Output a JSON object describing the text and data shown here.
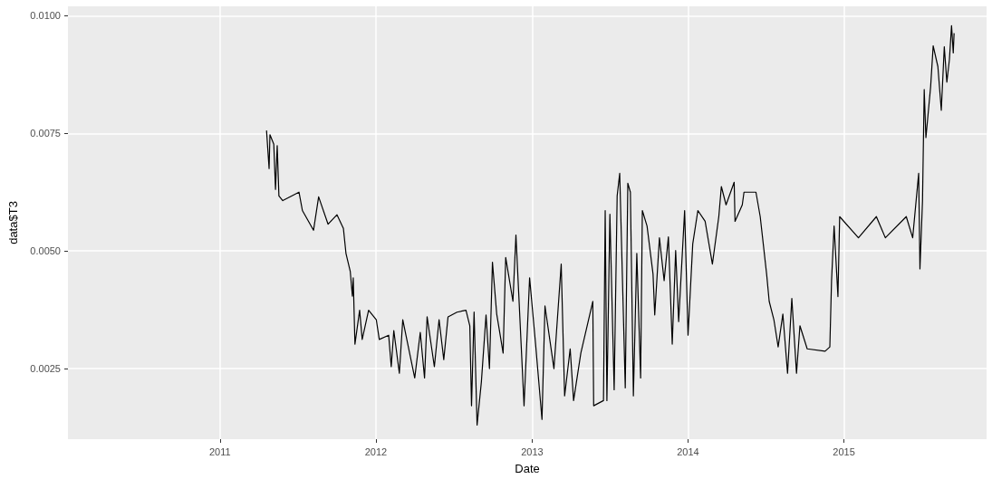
{
  "chart_data": {
    "type": "line",
    "xlabel": "Date",
    "ylabel": "data$T3",
    "xlim": [
      "2010-01-10",
      "2015-12-01"
    ],
    "xticks": [
      "2011",
      "2012",
      "2013",
      "2014",
      "2015"
    ],
    "ylim": [
      0.001,
      0.0102
    ],
    "yticks": [
      {
        "value": 0.0025,
        "label": "0.0025"
      },
      {
        "value": 0.005,
        "label": "0.0050"
      },
      {
        "value": 0.0075,
        "label": "0.0075"
      },
      {
        "value": 0.01,
        "label": "0.0100"
      }
    ],
    "grid": true,
    "marker": "none",
    "series": [
      {
        "color": "#000000",
        "x": [
          "2011-04-20",
          "2011-04-26",
          "2011-04-28",
          "2011-05-07",
          "2011-05-11",
          "2011-05-15",
          "2011-05-19",
          "2011-05-28",
          "2011-07-05",
          "2011-07-13",
          "2011-08-08",
          "2011-08-20",
          "2011-09-11",
          "2011-10-02",
          "2011-10-17",
          "2011-10-23",
          "2011-11-02",
          "2011-11-07",
          "2011-11-09",
          "2011-11-13",
          "2011-11-24",
          "2011-11-30",
          "2011-12-15",
          "2012-01-02",
          "2012-01-09",
          "2012-01-31",
          "2012-02-06",
          "2012-02-12",
          "2012-02-25",
          "2012-03-04",
          "2012-04-01",
          "2012-04-14",
          "2012-04-24",
          "2012-04-30",
          "2012-05-17",
          "2012-05-28",
          "2012-06-08",
          "2012-06-18",
          "2012-07-09",
          "2012-07-30",
          "2012-08-08",
          "2012-08-12",
          "2012-08-18",
          "2012-08-25",
          "2012-09-04",
          "2012-09-15",
          "2012-09-23",
          "2012-09-30",
          "2012-10-10",
          "2012-10-25",
          "2012-10-31",
          "2012-11-17",
          "2012-11-24",
          "2012-12-13",
          "2012-12-26",
          "2013-01-09",
          "2013-01-24",
          "2013-01-31",
          "2013-02-21",
          "2013-03-10",
          "2013-03-18",
          "2013-03-31",
          "2013-04-08",
          "2013-04-25",
          "2013-05-23",
          "2013-05-25",
          "2013-06-17",
          "2013-06-21",
          "2013-06-25",
          "2013-07-02",
          "2013-07-12",
          "2013-07-19",
          "2013-07-25",
          "2013-08-07",
          "2013-08-13",
          "2013-08-19",
          "2013-08-26",
          "2013-09-03",
          "2013-09-12",
          "2013-09-16",
          "2013-09-27",
          "2013-10-11",
          "2013-10-15",
          "2013-10-26",
          "2013-11-06",
          "2013-11-16",
          "2013-11-25",
          "2013-12-03",
          "2013-12-10",
          "2013-12-24",
          "2014-01-01",
          "2014-01-12",
          "2014-01-24",
          "2014-02-10",
          "2014-02-27",
          "2014-03-14",
          "2014-03-20",
          "2014-03-31",
          "2014-04-19",
          "2014-04-21",
          "2014-05-08",
          "2014-05-12",
          "2014-06-09",
          "2014-06-19",
          "2014-07-04",
          "2014-07-10",
          "2014-07-21",
          "2014-07-31",
          "2014-08-11",
          "2014-08-22",
          "2014-09-01",
          "2014-09-12",
          "2014-09-20",
          "2014-10-07",
          "2014-11-18",
          "2014-11-29",
          "2014-12-03",
          "2014-12-09",
          "2014-12-18",
          "2014-12-22",
          "2015-02-04",
          "2015-03-18",
          "2015-04-08",
          "2015-05-27",
          "2015-06-11",
          "2015-06-25",
          "2015-06-28",
          "2015-07-04",
          "2015-07-08",
          "2015-07-12",
          "2015-07-23",
          "2015-07-29",
          "2015-08-09",
          "2015-08-17",
          "2015-08-24",
          "2015-08-30",
          "2015-09-05",
          "2015-09-10",
          "2015-09-14",
          "2015-09-16"
        ],
        "values": [
          0.00756,
          0.00675,
          0.00747,
          0.00727,
          0.00631,
          0.00724,
          0.00617,
          0.00607,
          0.00625,
          0.00586,
          0.00544,
          0.00615,
          0.00557,
          0.00577,
          0.00548,
          0.00495,
          0.00457,
          0.00404,
          0.00443,
          0.00302,
          0.00374,
          0.00312,
          0.00374,
          0.00354,
          0.00312,
          0.00321,
          0.00254,
          0.00331,
          0.0024,
          0.00354,
          0.0023,
          0.00327,
          0.0023,
          0.0036,
          0.00254,
          0.00354,
          0.00269,
          0.0036,
          0.0037,
          0.00374,
          0.00341,
          0.00171,
          0.0037,
          0.0013,
          0.00221,
          0.00364,
          0.0025,
          0.00476,
          0.00366,
          0.00283,
          0.00486,
          0.00393,
          0.00534,
          0.00171,
          0.00443,
          0.00302,
          0.00142,
          0.00383,
          0.0025,
          0.00472,
          0.00192,
          0.00292,
          0.00182,
          0.00283,
          0.00393,
          0.00171,
          0.00182,
          0.00586,
          0.00182,
          0.00578,
          0.00205,
          0.00617,
          0.00665,
          0.00209,
          0.00644,
          0.00625,
          0.00192,
          0.00495,
          0.0023,
          0.00586,
          0.00553,
          0.00451,
          0.00364,
          0.00528,
          0.00437,
          0.0053,
          0.00302,
          0.00501,
          0.0035,
          0.00586,
          0.00321,
          0.00515,
          0.00586,
          0.00563,
          0.00472,
          0.00573,
          0.00637,
          0.00598,
          0.00646,
          0.00563,
          0.00598,
          0.00625,
          0.00625,
          0.00573,
          0.00451,
          0.00393,
          0.00354,
          0.00296,
          0.00366,
          0.0024,
          0.00399,
          0.0024,
          0.00341,
          0.00292,
          0.00287,
          0.00296,
          0.00437,
          0.00553,
          0.00403,
          0.00573,
          0.00528,
          0.00573,
          0.00528,
          0.00573,
          0.00528,
          0.00665,
          0.00462,
          0.00606,
          0.00843,
          0.00741,
          0.00849,
          0.00936,
          0.00892,
          0.00799,
          0.00934,
          0.00859,
          0.00907,
          0.00979,
          0.00921,
          0.00963
        ]
      }
    ]
  }
}
